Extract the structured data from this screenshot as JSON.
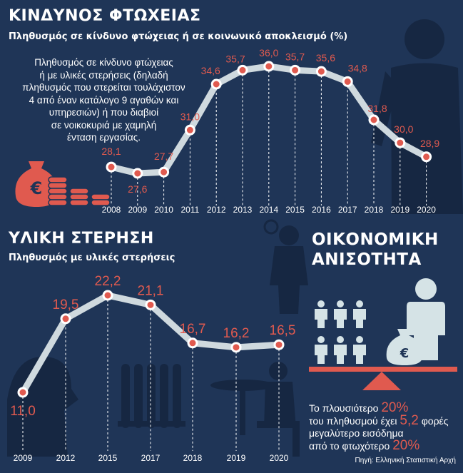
{
  "source": "Πηγή: Ελληνική Στατιστική Αρχή",
  "poverty": {
    "title": "ΚΙΝΔΥΝΟΣ ΦΤΩΧΕΙΑΣ",
    "subtitle": "Πληθυσμός σε κίνδυνο φτώχειας ή σε κοινωνικό αποκλεισμό (%)",
    "description": [
      "Πληθυσμός σε κίνδυνο φτώχειας",
      "ή με υλικές στερήσεις (δηλαδή",
      "πληθυσμός που στερείται τουλάχιστον",
      "4 από έναν κατάλογο 9 αγαθών και",
      "υπηρεσιών) ή που διαβιοί",
      "σε νοικοκυριά με χαμηλή",
      "ένταση εργασίας."
    ]
  },
  "deprivation": {
    "title": "ΥΛΙΚΗ ΣΤΕΡΗΣΗ",
    "subtitle": "Πληθυσμός με υλικές στερήσεις"
  },
  "inequality": {
    "title_line1": "ΟΙΚΟΝΟΜΙΚΗ",
    "title_line2": "ΑΝΙΣΟΤΗΤΑ",
    "line1_a": "Το πλουσιότερο ",
    "line1_b": "20%",
    "line2_a": "του πληθυσμού έχει ",
    "line2_b": "5,2",
    "line2_c": " φορές",
    "line3": "μεγαλύτερο εισόδημα",
    "line4_a": "από το φτωχότερο ",
    "line4_b": "20%"
  },
  "chart_data": [
    {
      "type": "line",
      "title": "ΚΙΝΔΥΝΟΣ ΦΤΩΧΕΙΑΣ",
      "x": [
        "2008",
        "2009",
        "2010",
        "2011",
        "2012",
        "2013",
        "2014",
        "2015",
        "2016",
        "2017",
        "2018",
        "2019",
        "2020"
      ],
      "values": [
        28.1,
        27.6,
        27.7,
        31.0,
        34.6,
        35.7,
        36.0,
        35.7,
        35.6,
        34.8,
        31.8,
        30.0,
        28.9
      ],
      "labels": [
        "28,1",
        "27,6",
        "27,7",
        "31,0",
        "34,6",
        "35,7",
        "36,0",
        "35,7",
        "35,6",
        "34,8",
        "31,8",
        "30,0",
        "28,9"
      ]
    },
    {
      "type": "line",
      "title": "ΥΛΙΚΗ ΣΤΕΡΗΣΗ",
      "x": [
        "2009",
        "2012",
        "2015",
        "2017",
        "2018",
        "2019",
        "2020"
      ],
      "values": [
        11.0,
        19.5,
        22.2,
        21.1,
        16.7,
        16.2,
        16.5
      ],
      "labels": [
        "11,0",
        "19,5",
        "22,2",
        "21,1",
        "16,7",
        "16,2",
        "16,5"
      ]
    }
  ]
}
